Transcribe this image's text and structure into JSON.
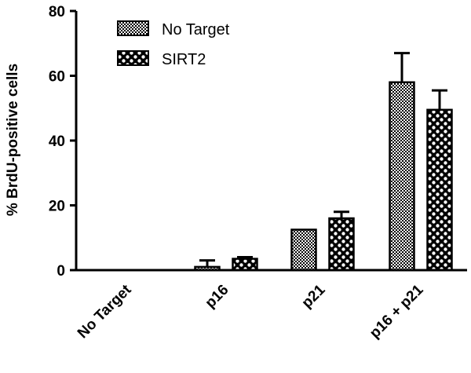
{
  "chart_data": {
    "type": "bar",
    "title": "",
    "xlabel": "",
    "ylabel": "% BrdU-positive cells",
    "ylim": [
      0,
      80
    ],
    "yticks": [
      0,
      20,
      40,
      60,
      80
    ],
    "categories": [
      "No Target",
      "p16",
      "p21",
      "p16 + p21"
    ],
    "series": [
      {
        "name": "No Target",
        "values": [
          0,
          1,
          12.5,
          58
        ],
        "errors": [
          0,
          2,
          0,
          9
        ],
        "pattern": "fine-checker"
      },
      {
        "name": "SIRT2",
        "values": [
          0,
          3.5,
          16,
          49.5
        ],
        "errors": [
          0,
          0.5,
          2,
          6
        ],
        "pattern": "coarse-checker"
      }
    ],
    "legend_position": "top-left",
    "grid": false,
    "colors": {
      "bar_dark": "#000000",
      "bar_light": "#ffffff"
    }
  }
}
